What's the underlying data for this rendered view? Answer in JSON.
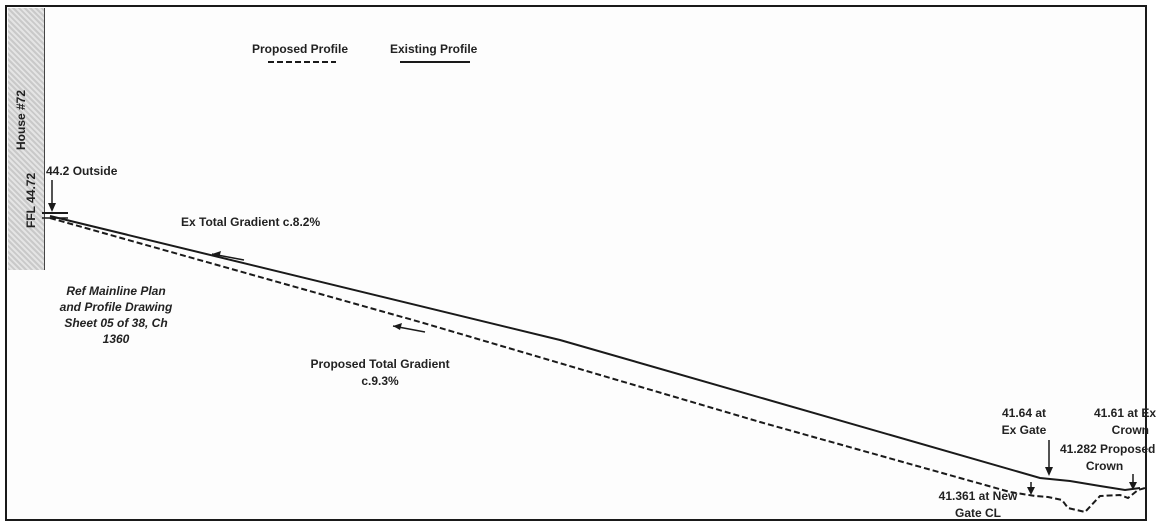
{
  "legend": {
    "proposed": "Proposed Profile",
    "existing": "Existing Profile"
  },
  "house_block": {
    "house_label": "House #72",
    "ffl_label": "FFL 44.72"
  },
  "annotations": {
    "outside_level": "44.2 Outside",
    "ex_gradient": "Ex Total Gradient c.8.2%",
    "proposed_gradient_line1": "Proposed Total Gradient",
    "proposed_gradient_line2": "c.9.3%",
    "reference": [
      "Ref Mainline Plan",
      "and Profile Drawing",
      "Sheet 05 of 38, Ch",
      "1360"
    ],
    "ex_gate": [
      "41.64 at",
      "Ex Gate"
    ],
    "ex_crown": [
      "41.61 at Ex",
      "Crown"
    ],
    "proposed_crown": [
      "41.282 Proposed",
      "Crown"
    ],
    "new_gate": [
      "41.361 at New",
      "Gate CL"
    ]
  },
  "colors": {
    "line": "#1a1a1a",
    "text": "#222222",
    "house_fill": "#d6d6d6"
  }
}
